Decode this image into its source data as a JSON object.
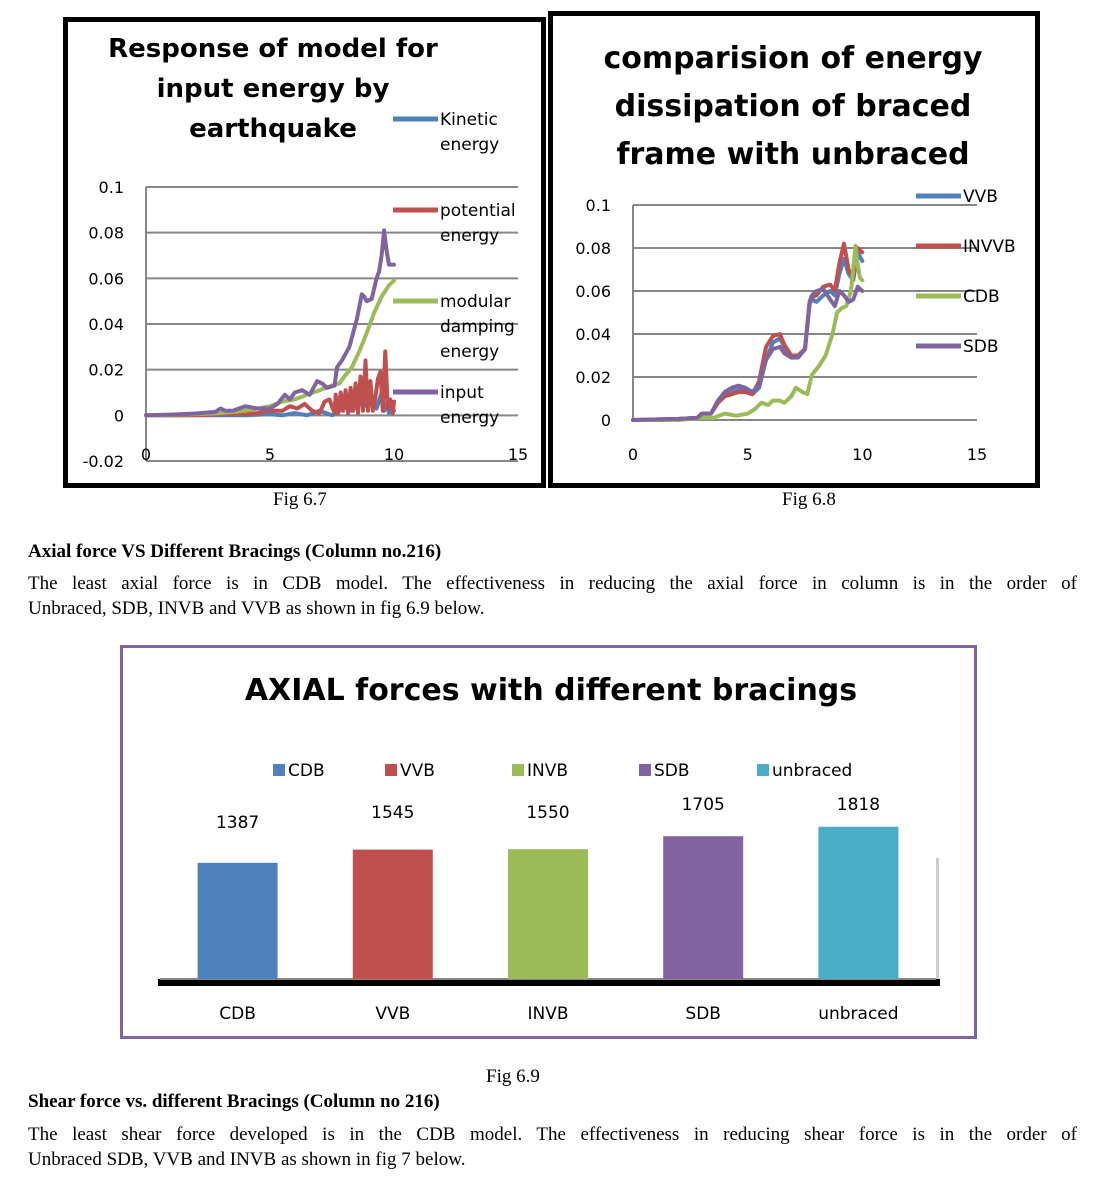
{
  "figures": {
    "fig67_caption": "Fig 6.7",
    "fig68_caption": "Fig 6.8",
    "fig69_caption": "Fig 6.9"
  },
  "section1": {
    "heading": "Axial force VS Different Bracings (Column no.216)",
    "para_line1": "The least axial force is in CDB model. The effectiveness in reducing the axial force in column is in the order of",
    "para_line2": "Unbraced, SDB, INVB and VVB as shown in fig 6.9 below."
  },
  "section2": {
    "heading": "Shear force vs. different Bracings (Column no 216)",
    "para_line1": "The least shear force developed is in the CDB model.  The effectiveness in reducing shear force is in the order of",
    "para_line2": "Unbraced SDB, VVB and INVB as shown in fig 7 below."
  },
  "chart_data": [
    {
      "id": "fig67",
      "type": "line",
      "title_lines": [
        "Response of model for",
        "input energy by",
        "earthquake"
      ],
      "xlabel": "",
      "ylabel": "",
      "xlim": [
        0,
        15
      ],
      "ylim": [
        -0.02,
        0.1
      ],
      "x_ticks": [
        "0",
        "5",
        "10",
        "15"
      ],
      "y_ticks": [
        "-0.02",
        "0",
        "0.02",
        "0.04",
        "0.06",
        "0.08",
        "0.1"
      ],
      "x_tick_values": [
        0,
        5,
        10,
        15
      ],
      "y_tick_values": [
        -0.02,
        0,
        0.02,
        0.04,
        0.06,
        0.08,
        0.1
      ],
      "grid": true,
      "legend_position": "right",
      "series": [
        {
          "name": "Kinetic energy",
          "legend_lines": [
            "Kinetic",
            "energy"
          ],
          "color": "#4f81bd",
          "x": [
            0,
            1,
            2,
            3,
            4,
            5,
            5.5,
            6,
            6.5,
            7,
            7.5,
            7.7,
            8,
            8.3,
            8.6,
            8.9,
            9.1,
            9.3,
            9.5,
            9.6,
            9.7,
            9.8,
            9.9,
            10
          ],
          "y": [
            0,
            0,
            0,
            0,
            0,
            0.0005,
            0,
            0.001,
            0,
            0.002,
            0,
            0.001,
            0.004,
            0.002,
            0.006,
            0.004,
            0.008,
            0.003,
            0.01,
            0.002,
            0.005,
            0.001,
            0.004,
            0.002
          ]
        },
        {
          "name": "potential energy",
          "legend_lines": [
            "potential",
            "energy"
          ],
          "color": "#c0504d",
          "x": [
            0,
            2,
            3,
            4,
            4.5,
            5,
            5.5,
            5.8,
            6.1,
            6.4,
            6.7,
            7,
            7.2,
            7.4,
            7.6,
            7.65,
            7.75,
            7.85,
            7.95,
            8.05,
            8.15,
            8.25,
            8.35,
            8.45,
            8.55,
            8.65,
            8.75,
            8.85,
            8.95,
            9.05,
            9.15,
            9.25,
            9.35,
            9.45,
            9.55,
            9.65,
            9.75,
            9.85,
            9.95,
            10
          ],
          "y": [
            0,
            0,
            0.0005,
            0.0005,
            0.001,
            0.002,
            0.002,
            0.004,
            0.003,
            0.005,
            0.002,
            0.001,
            0.006,
            0.007,
            0.001,
            0.009,
            0.001,
            0.01,
            0.002,
            0.011,
            0.001,
            0.012,
            0.002,
            0.014,
            0.001,
            0.017,
            0.002,
            0.024,
            0.002,
            0.015,
            0.002,
            0.008,
            0.016,
            0.019,
            0.002,
            0.028,
            0.003,
            0.007,
            0.001,
            0.006
          ]
        },
        {
          "name": "modular damping energy",
          "legend_lines": [
            "modular",
            "damping",
            "energy"
          ],
          "color": "#9bbb59",
          "x": [
            0,
            1,
            2,
            3,
            4,
            4.5,
            5,
            5.5,
            6,
            6.5,
            7,
            7.5,
            7.8,
            8,
            8.3,
            8.6,
            8.9,
            9.2,
            9.5,
            9.8,
            10
          ],
          "y": [
            0,
            0.0002,
            0.0005,
            0.001,
            0.002,
            0.003,
            0.004,
            0.006,
            0.007,
            0.009,
            0.011,
            0.013,
            0.014,
            0.017,
            0.021,
            0.028,
            0.036,
            0.045,
            0.052,
            0.057,
            0.059
          ]
        },
        {
          "name": "input energy",
          "legend_lines": [
            "input",
            "energy"
          ],
          "color": "#8064a2",
          "x": [
            0,
            1,
            2,
            2.8,
            3,
            3.2,
            3.5,
            4,
            4.5,
            5,
            5.3,
            5.6,
            5.8,
            6,
            6.3,
            6.6,
            6.9,
            7.1,
            7.3,
            7.6,
            7.7,
            7.9,
            8.2,
            8.5,
            8.7,
            8.8,
            8.9,
            9.1,
            9.3,
            9.4,
            9.5,
            9.6,
            9.7,
            9.8,
            10
          ],
          "y": [
            0,
            0.0003,
            0.0008,
            0.0015,
            0.003,
            0.002,
            0.002,
            0.004,
            0.003,
            0.003,
            0.005,
            0.009,
            0.007,
            0.01,
            0.011,
            0.009,
            0.015,
            0.014,
            0.012,
            0.013,
            0.021,
            0.024,
            0.03,
            0.042,
            0.053,
            0.052,
            0.05,
            0.051,
            0.06,
            0.063,
            0.07,
            0.081,
            0.072,
            0.066,
            0.066
          ]
        }
      ]
    },
    {
      "id": "fig68",
      "type": "line",
      "title_lines": [
        "comparision of energy",
        "dissipation of braced",
        "frame with unbraced"
      ],
      "xlabel": "",
      "ylabel": "",
      "xlim": [
        0,
        15
      ],
      "ylim": [
        0,
        0.1
      ],
      "x_ticks": [
        "0",
        "5",
        "10",
        "15"
      ],
      "y_ticks": [
        "0",
        "0.02",
        "0.04",
        "0.06",
        "0.08",
        "0.1"
      ],
      "x_tick_values": [
        0,
        5,
        10,
        15
      ],
      "y_tick_values": [
        0,
        0.02,
        0.04,
        0.06,
        0.08,
        0.1
      ],
      "grid": true,
      "legend_position": "right",
      "series": [
        {
          "name": "VVB",
          "color": "#4f81bd",
          "x": [
            0,
            2,
            2.8,
            3,
            3.4,
            3.7,
            4,
            4.3,
            4.6,
            4.9,
            5.2,
            5.5,
            5.8,
            6.1,
            6.4,
            6.6,
            6.9,
            7.2,
            7.5,
            7.7,
            7.8,
            8,
            8.3,
            8.6,
            8.8,
            9,
            9.2,
            9.4,
            9.6,
            9.8,
            10
          ],
          "y": [
            0,
            0.0005,
            0.001,
            0.003,
            0.003,
            0.008,
            0.012,
            0.013,
            0.014,
            0.014,
            0.012,
            0.015,
            0.028,
            0.036,
            0.038,
            0.034,
            0.03,
            0.03,
            0.033,
            0.054,
            0.056,
            0.055,
            0.058,
            0.06,
            0.058,
            0.068,
            0.075,
            0.068,
            0.065,
            0.078,
            0.074
          ]
        },
        {
          "name": "INVVB",
          "color": "#c0504d",
          "x": [
            0,
            2,
            2.8,
            3,
            3.4,
            3.7,
            4,
            4.3,
            4.6,
            4.9,
            5.2,
            5.5,
            5.8,
            6.1,
            6.4,
            6.6,
            6.9,
            7.2,
            7.5,
            7.7,
            7.8,
            8,
            8.3,
            8.6,
            8.8,
            9,
            9.2,
            9.4,
            9.6,
            9.8,
            10
          ],
          "y": [
            0,
            0.0005,
            0.001,
            0.003,
            0.003,
            0.008,
            0.011,
            0.012,
            0.013,
            0.013,
            0.012,
            0.018,
            0.034,
            0.039,
            0.04,
            0.035,
            0.03,
            0.03,
            0.033,
            0.055,
            0.057,
            0.058,
            0.062,
            0.063,
            0.06,
            0.073,
            0.082,
            0.07,
            0.066,
            0.08,
            0.078
          ]
        },
        {
          "name": "CDB",
          "color": "#9bbb59",
          "x": [
            0,
            2,
            3,
            3.5,
            4,
            4.5,
            5,
            5.3,
            5.6,
            5.9,
            6.1,
            6.4,
            6.6,
            6.9,
            7.1,
            7.4,
            7.6,
            7.8,
            8.1,
            8.4,
            8.7,
            8.9,
            9.1,
            9.3,
            9.5,
            9.6,
            9.7,
            9.8,
            9.9,
            10
          ],
          "y": [
            0,
            0,
            0.001,
            0.001,
            0.003,
            0.002,
            0.003,
            0.005,
            0.008,
            0.007,
            0.009,
            0.009,
            0.008,
            0.011,
            0.015,
            0.013,
            0.012,
            0.021,
            0.025,
            0.03,
            0.04,
            0.05,
            0.052,
            0.053,
            0.06,
            0.07,
            0.081,
            0.072,
            0.066,
            0.065
          ]
        },
        {
          "name": "SDB",
          "color": "#8064a2",
          "x": [
            0,
            2,
            2.8,
            3,
            3.4,
            3.7,
            4,
            4.3,
            4.6,
            4.9,
            5.2,
            5.5,
            5.8,
            6.1,
            6.4,
            6.6,
            6.9,
            7.2,
            7.5,
            7.7,
            7.8,
            8,
            8.3,
            8.6,
            8.8,
            9,
            9.2,
            9.4,
            9.6,
            9.8,
            10
          ],
          "y": [
            0,
            0.0005,
            0.001,
            0.003,
            0.003,
            0.009,
            0.013,
            0.015,
            0.016,
            0.015,
            0.013,
            0.016,
            0.028,
            0.033,
            0.034,
            0.031,
            0.029,
            0.029,
            0.033,
            0.055,
            0.058,
            0.06,
            0.061,
            0.056,
            0.053,
            0.06,
            0.058,
            0.055,
            0.056,
            0.062,
            0.06
          ]
        }
      ]
    },
    {
      "id": "fig69",
      "type": "bar",
      "title": "AXIAL forces with different bracings",
      "xlabel": "",
      "ylabel": "",
      "categories": [
        "CDB",
        "VVB",
        "INVB",
        "SDB",
        "unbraced"
      ],
      "values": [
        1387,
        1545,
        1550,
        1705,
        1818
      ],
      "colors": [
        "#4f81bd",
        "#c0504d",
        "#9bbb59",
        "#8064a2",
        "#4bacc6"
      ],
      "legend": [
        "CDB",
        "VVB",
        "INVB",
        "SDB",
        "unbraced"
      ],
      "legend_position": "top",
      "data_labels": [
        "1387",
        "1545",
        "1550",
        "1705",
        "1818"
      ],
      "ylim": [
        0,
        2400
      ],
      "grid": false
    }
  ]
}
